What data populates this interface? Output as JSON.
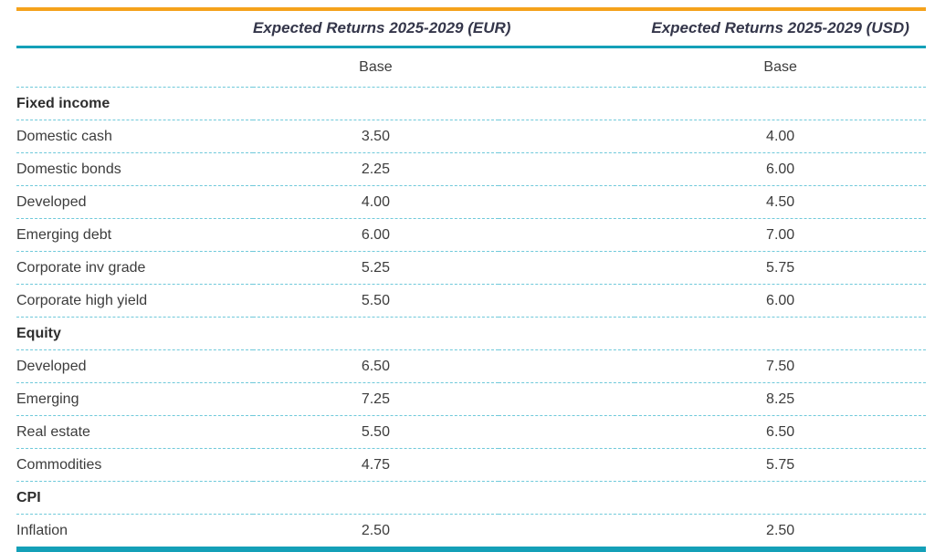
{
  "table": {
    "col_headers": {
      "eur": "Expected Returns 2025-2029 (EUR)",
      "usd": "Expected Returns 2025-2029 (USD)"
    },
    "sub_headers": {
      "eur": "Base",
      "usd": "Base"
    },
    "rows": [
      {
        "type": "section",
        "label": "Fixed income",
        "eur": "",
        "usd": ""
      },
      {
        "type": "data",
        "label": "Domestic cash",
        "eur": "3.50",
        "usd": "4.00"
      },
      {
        "type": "data",
        "label": "Domestic bonds",
        "eur": "2.25",
        "usd": "6.00"
      },
      {
        "type": "data",
        "label": "Developed",
        "eur": "4.00",
        "usd": "4.50"
      },
      {
        "type": "data",
        "label": "Emerging debt",
        "eur": "6.00",
        "usd": "7.00"
      },
      {
        "type": "data",
        "label": "Corporate inv grade",
        "eur": "5.25",
        "usd": "5.75"
      },
      {
        "type": "data",
        "label": "Corporate high yield",
        "eur": "5.50",
        "usd": "6.00"
      },
      {
        "type": "section",
        "label": "Equity",
        "eur": "",
        "usd": ""
      },
      {
        "type": "data",
        "label": "Developed",
        "eur": "6.50",
        "usd": "7.50"
      },
      {
        "type": "data",
        "label": "Emerging",
        "eur": "7.25",
        "usd": "8.25"
      },
      {
        "type": "data",
        "label": "Real estate",
        "eur": "5.50",
        "usd": "6.50"
      },
      {
        "type": "data",
        "label": "Commodities",
        "eur": "4.75",
        "usd": "5.75"
      },
      {
        "type": "section",
        "label": "CPI",
        "eur": "",
        "usd": ""
      },
      {
        "type": "data",
        "label": "Inflation",
        "eur": "2.50",
        "usd": "2.50"
      }
    ]
  },
  "colors": {
    "accent_orange": "#F5A21B",
    "accent_teal": "#14A0B8",
    "dash_teal": "#6FC9DA",
    "body_text": "#3C3C3C",
    "header_text": "#34364A"
  }
}
